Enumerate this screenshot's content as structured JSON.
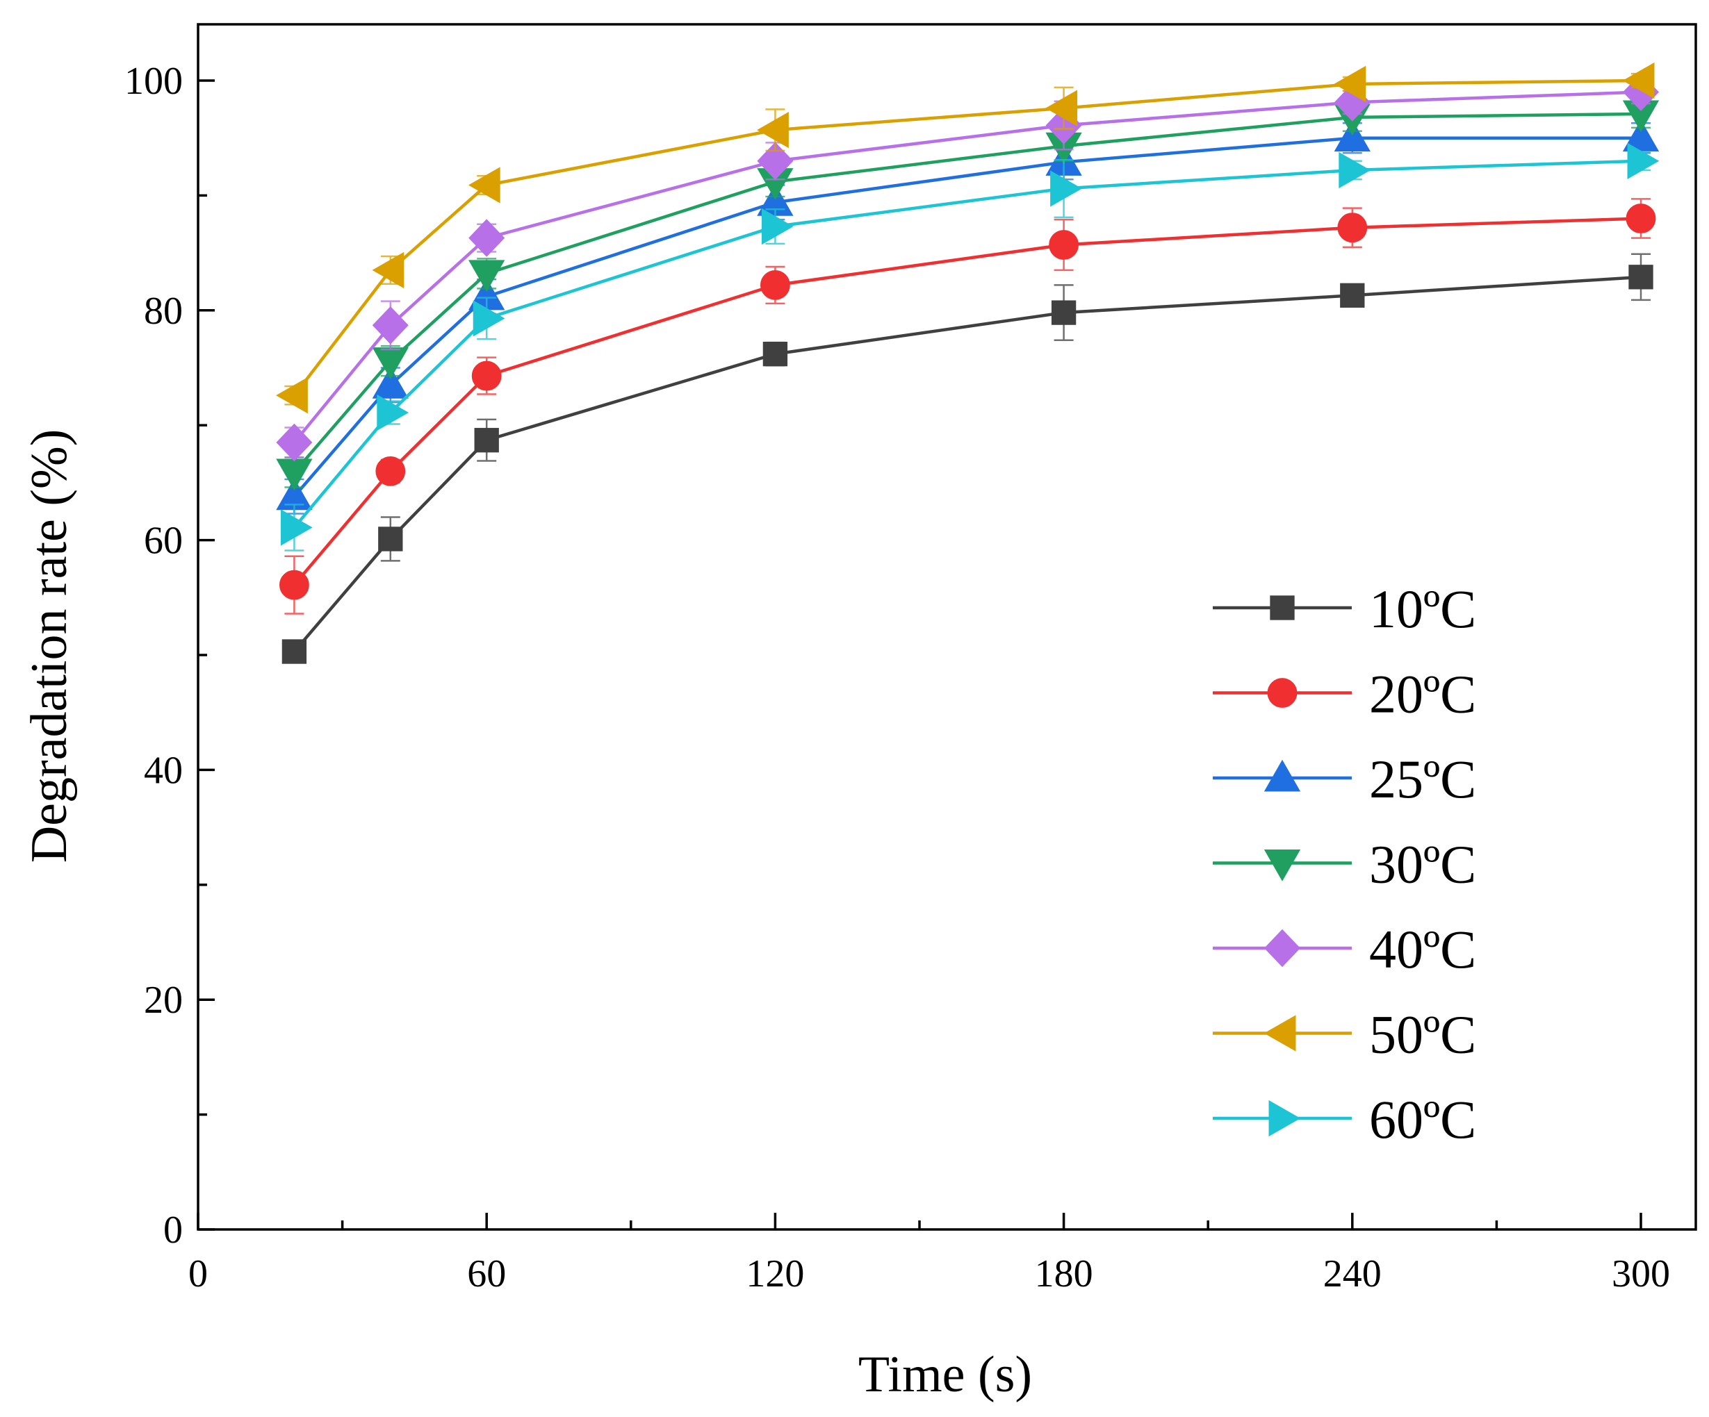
{
  "chart_data": {
    "type": "line",
    "title": "",
    "xlabel": "Time (s)",
    "ylabel": "Degradation rate (%)",
    "xlim": [
      0,
      310
    ],
    "ylim": [
      0,
      105
    ],
    "xticks": [
      0,
      60,
      120,
      180,
      240,
      300
    ],
    "xtick_labels": [
      "0",
      "60",
      "120",
      "180",
      "240",
      "300"
    ],
    "xminor": [
      30,
      90,
      150,
      210,
      270
    ],
    "yticks": [
      0,
      20,
      40,
      60,
      80,
      100
    ],
    "ytick_labels": [
      "0",
      "20",
      "40",
      "60",
      "80",
      "100"
    ],
    "yminor": [
      10,
      30,
      50,
      70,
      90
    ],
    "x": [
      20,
      40,
      60,
      120,
      180,
      240,
      300
    ],
    "legend_position": "lower-right",
    "series": [
      {
        "name": "10ºC",
        "label_num": "10",
        "label_unit": "ºC",
        "color": "#404040",
        "marker": "square",
        "values": [
          50.3,
          60.1,
          68.7,
          76.2,
          79.8,
          81.3,
          82.9
        ],
        "errors": [
          0.8,
          1.9,
          1.8,
          1.0,
          2.4,
          0.8,
          2.0
        ]
      },
      {
        "name": "20ºC",
        "label_num": "20",
        "label_unit": "ºC",
        "color": "#f03030",
        "marker": "circle",
        "values": [
          56.1,
          66.0,
          74.3,
          82.2,
          85.7,
          87.2,
          88.0
        ],
        "errors": [
          2.5,
          1.0,
          1.6,
          1.6,
          2.2,
          1.7,
          1.7
        ]
      },
      {
        "name": "25ºC",
        "label_num": "25",
        "label_unit": "ºC",
        "color": "#1f6fe0",
        "marker": "triangle-up",
        "values": [
          63.8,
          73.5,
          81.2,
          89.4,
          92.9,
          95.0,
          95.0
        ],
        "errors": [
          1.5,
          1.5,
          1.5,
          1.5,
          1.5,
          1.3,
          1.3
        ]
      },
      {
        "name": "30ºC",
        "label_num": "30",
        "label_unit": "ºC",
        "color": "#1fa060",
        "marker": "triangle-down",
        "values": [
          65.9,
          75.6,
          83.2,
          91.2,
          94.3,
          96.8,
          97.1
        ],
        "errors": [
          1.3,
          1.3,
          1.3,
          1.3,
          1.3,
          1.2,
          1.2
        ]
      },
      {
        "name": "40ºC",
        "label_num": "40",
        "label_unit": "ºC",
        "color": "#b870e8",
        "marker": "diamond",
        "values": [
          68.5,
          78.7,
          86.3,
          93.0,
          96.1,
          98.1,
          99.0
        ],
        "errors": [
          1.3,
          2.1,
          1.2,
          1.6,
          2.1,
          1.0,
          1.0
        ]
      },
      {
        "name": "50ºC",
        "label_num": "50",
        "label_unit": "ºC",
        "color": "#d9a000",
        "marker": "triangle-left",
        "values": [
          72.6,
          83.5,
          90.9,
          95.7,
          97.6,
          99.7,
          100.0
        ],
        "errors": [
          0.8,
          1.2,
          0.8,
          1.8,
          1.8,
          0.6,
          0.6
        ]
      },
      {
        "name": "60ºC",
        "label_num": "60",
        "label_unit": "ºC",
        "color": "#1cc4d4",
        "marker": "triangle-right",
        "values": [
          61.1,
          71.1,
          79.3,
          87.3,
          90.6,
          92.2,
          93.0
        ],
        "errors": [
          2.0,
          1.0,
          1.8,
          1.5,
          2.5,
          0.8,
          0.8
        ]
      }
    ]
  }
}
